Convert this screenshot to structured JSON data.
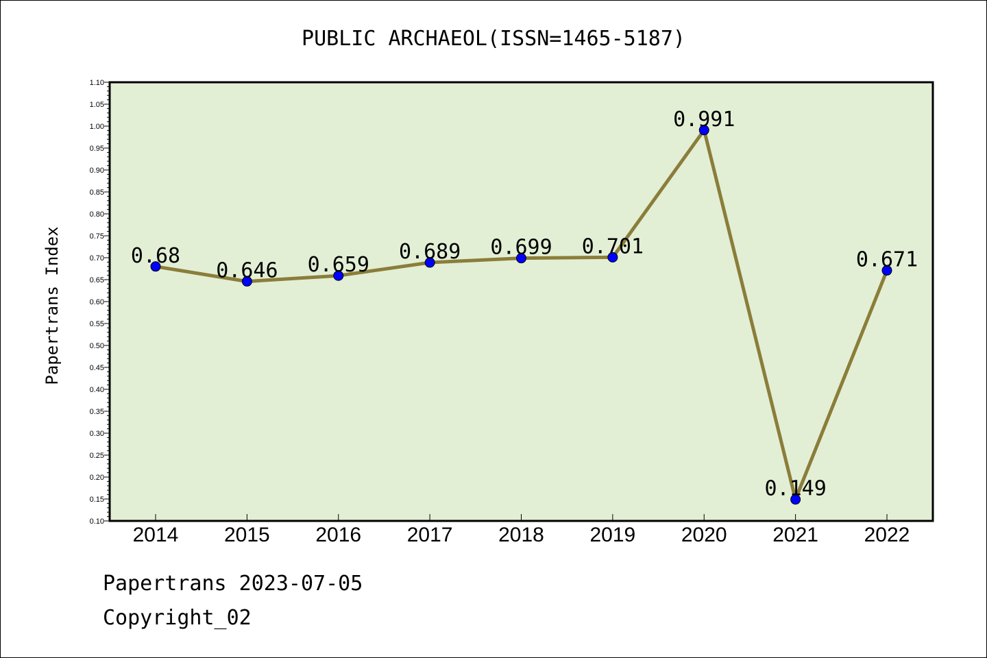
{
  "footer": {
    "line1": "Papertrans 2023-07-05",
    "line2": "Copyright_02"
  },
  "chart_data": {
    "type": "line",
    "title": "PUBLIC ARCHAEOL(ISSN=1465-5187)",
    "xlabel": "",
    "ylabel": "Papertrans Index",
    "categories": [
      "2014",
      "2015",
      "2016",
      "2017",
      "2018",
      "2019",
      "2020",
      "2021",
      "2022"
    ],
    "series": [
      {
        "values": [
          0.68,
          0.646,
          0.659,
          0.689,
          0.699,
          0.701,
          0.991,
          0.149,
          0.671
        ]
      }
    ],
    "data_labels": [
      "0.68",
      "0.646",
      "0.659",
      "0.689",
      "0.699",
      "0.701",
      "0.991",
      "0.149",
      "0.671"
    ],
    "ylim": [
      0.1,
      1.1
    ],
    "yticks": [
      "0.10",
      "0.15",
      "0.20",
      "0.25",
      "0.30",
      "0.35",
      "0.40",
      "0.45",
      "0.50",
      "0.55",
      "0.60",
      "0.65",
      "0.70",
      "0.75",
      "0.80",
      "0.85",
      "0.90",
      "0.95",
      "1.00",
      "1.05",
      "1.10"
    ],
    "grid": false,
    "colors": {
      "plot_background": "#e2efd5",
      "line": "#8b7d3a",
      "marker": "#0000ff"
    }
  }
}
